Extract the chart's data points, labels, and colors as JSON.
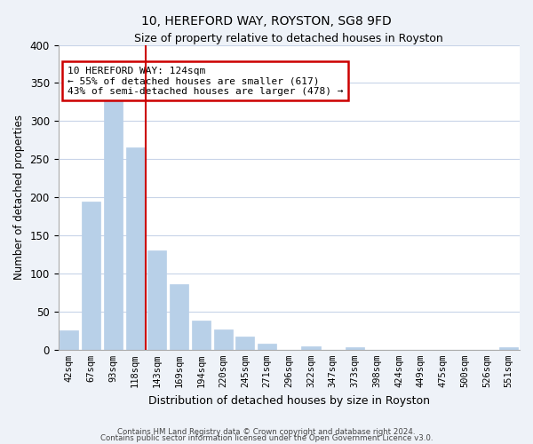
{
  "title": "10, HEREFORD WAY, ROYSTON, SG8 9FD",
  "subtitle": "Size of property relative to detached houses in Royston",
  "xlabel": "Distribution of detached houses by size in Royston",
  "ylabel": "Number of detached properties",
  "bar_labels": [
    "42sqm",
    "67sqm",
    "93sqm",
    "118sqm",
    "143sqm",
    "169sqm",
    "194sqm",
    "220sqm",
    "245sqm",
    "271sqm",
    "296sqm",
    "322sqm",
    "347sqm",
    "373sqm",
    "398sqm",
    "424sqm",
    "449sqm",
    "475sqm",
    "500sqm",
    "526sqm",
    "551sqm"
  ],
  "bar_values": [
    25,
    194,
    330,
    265,
    130,
    86,
    38,
    26,
    17,
    8,
    0,
    5,
    0,
    3,
    0,
    0,
    0,
    0,
    0,
    0,
    3
  ],
  "bar_color": "#b8d0e8",
  "bar_edge_color": "#b8d0e8",
  "vline_x": 3.5,
  "vline_color": "#cc0000",
  "annotation_lines": [
    "10 HEREFORD WAY: 124sqm",
    "← 55% of detached houses are smaller (617)",
    "43% of semi-detached houses are larger (478) →"
  ],
  "annotation_box_color": "#ffffff",
  "annotation_box_edge": "#cc0000",
  "ylim": [
    0,
    400
  ],
  "yticks": [
    0,
    50,
    100,
    150,
    200,
    250,
    300,
    350,
    400
  ],
  "footer1": "Contains HM Land Registry data © Crown copyright and database right 2024.",
  "footer2": "Contains public sector information licensed under the Open Government Licence v3.0.",
  "bg_color": "#eef2f8",
  "plot_bg_color": "#ffffff",
  "grid_color": "#c8d4e8"
}
